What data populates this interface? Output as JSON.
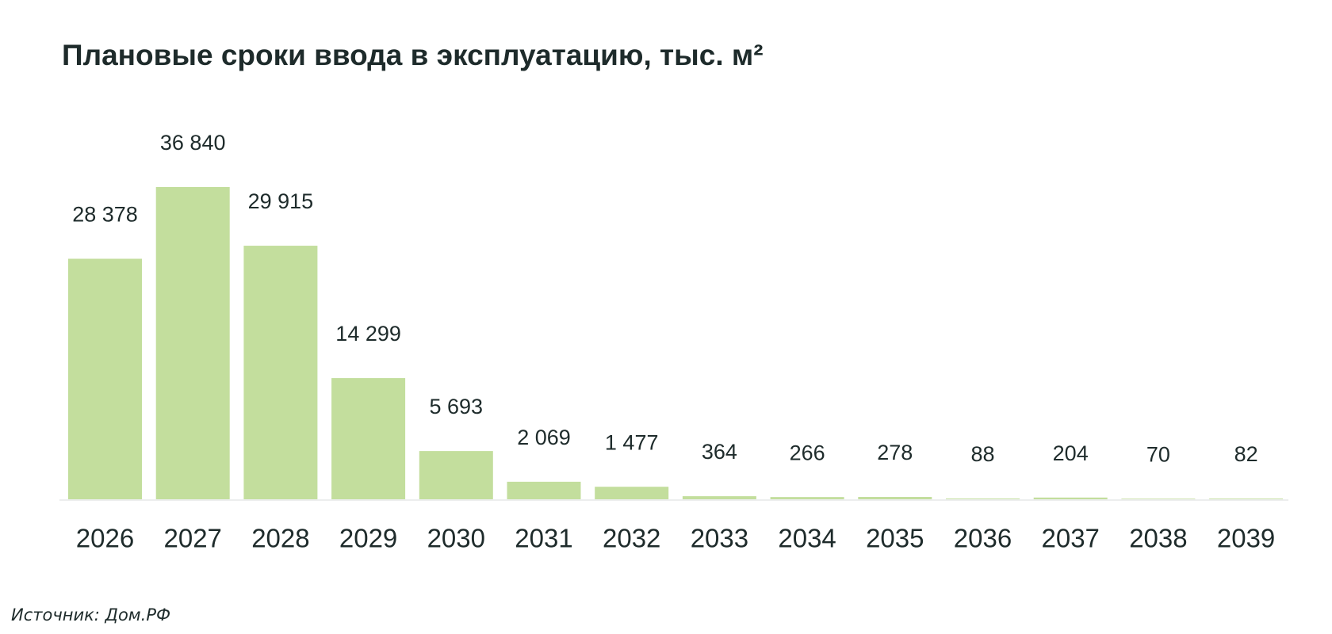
{
  "chart_data": {
    "type": "bar",
    "title": "Плановые сроки ввода в эксплуатацию, тыс. м²",
    "categories": [
      "2026",
      "2027",
      "2028",
      "2029",
      "2030",
      "2031",
      "2032",
      "2033",
      "2034",
      "2035",
      "2036",
      "2037",
      "2038",
      "2039"
    ],
    "values": [
      28378,
      36840,
      29915,
      14299,
      5693,
      2069,
      1477,
      364,
      266,
      278,
      88,
      204,
      70,
      82
    ],
    "value_labels": [
      "28 378",
      "36 840",
      "29 915",
      "14 299",
      "5 693",
      "2 069",
      "1 477",
      "364",
      "266",
      "278",
      "88",
      "204",
      "70",
      "82"
    ],
    "color": "#c3de9d"
  },
  "source": "Источник: Дом.РФ"
}
